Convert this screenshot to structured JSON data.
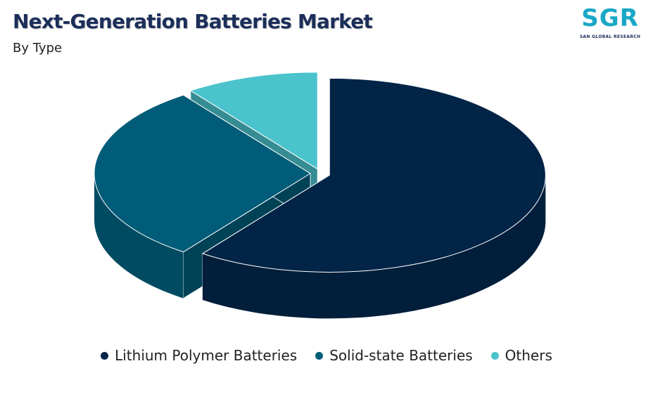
{
  "chart_data": {
    "type": "pie",
    "title": "Next-Generation Batteries Market",
    "subtitle": "By Type",
    "series": [
      {
        "name": "Lithium Polymer Batteries",
        "value": 60,
        "color": "#012447"
      },
      {
        "name": "Solid-state Batteries",
        "value": 30,
        "color": "#005c78"
      },
      {
        "name": "Others",
        "value": 10,
        "color": "#4bc3cc"
      }
    ],
    "legend_position": "bottom",
    "style": "3d-exploded"
  },
  "logo": {
    "text": "SGR",
    "subtext": "SAN GLOBAL RESEARCH",
    "color": "#1aa7c7"
  }
}
